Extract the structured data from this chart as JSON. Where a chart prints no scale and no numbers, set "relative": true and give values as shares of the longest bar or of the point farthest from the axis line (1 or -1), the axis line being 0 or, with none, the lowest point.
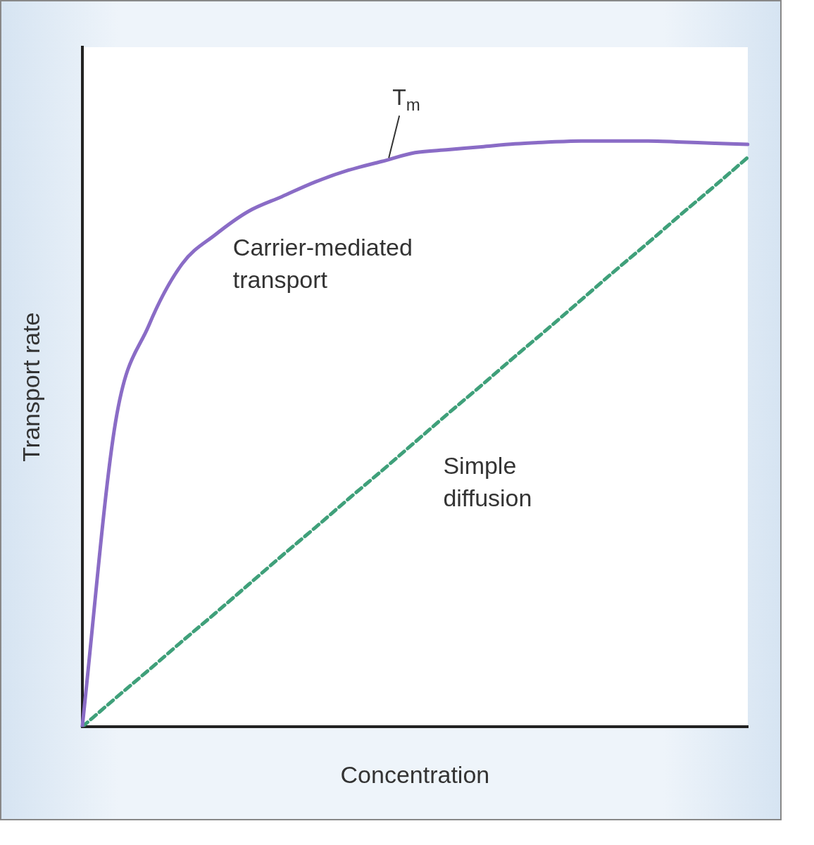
{
  "chart_data": {
    "type": "line",
    "relative": true,
    "xlabel": "Concentration",
    "ylabel": "Transport rate",
    "tick_labels": false,
    "marker": "none",
    "categories": [
      null,
      null,
      null,
      null,
      null,
      null,
      null,
      null,
      null,
      null,
      null,
      null,
      null,
      null,
      null,
      null,
      null,
      null,
      null,
      null,
      null
    ],
    "series": [
      {
        "name": "Carrier-mediated transport",
        "color": "#8a6cc6",
        "line_style": "solid",
        "values": [
          0,
          0.52,
          0.685,
          0.79,
          0.84,
          0.88,
          0.905,
          0.93,
          0.95,
          0.965,
          0.98,
          0.985,
          0.99,
          0.995,
          0.998,
          1,
          1,
          1,
          0.998,
          0.996,
          0.994
        ]
      },
      {
        "name": "Simple diffusion",
        "color": "#3fa07a",
        "line_style": "dashed",
        "values": [
          0,
          0.049,
          0.097,
          0.146,
          0.194,
          0.243,
          0.292,
          0.34,
          0.389,
          0.437,
          0.486,
          0.535,
          0.583,
          0.632,
          0.68,
          0.729,
          0.778,
          0.826,
          0.875,
          0.923,
          0.972
        ]
      }
    ],
    "annotations": [
      "T$_{m}$"
    ]
  }
}
